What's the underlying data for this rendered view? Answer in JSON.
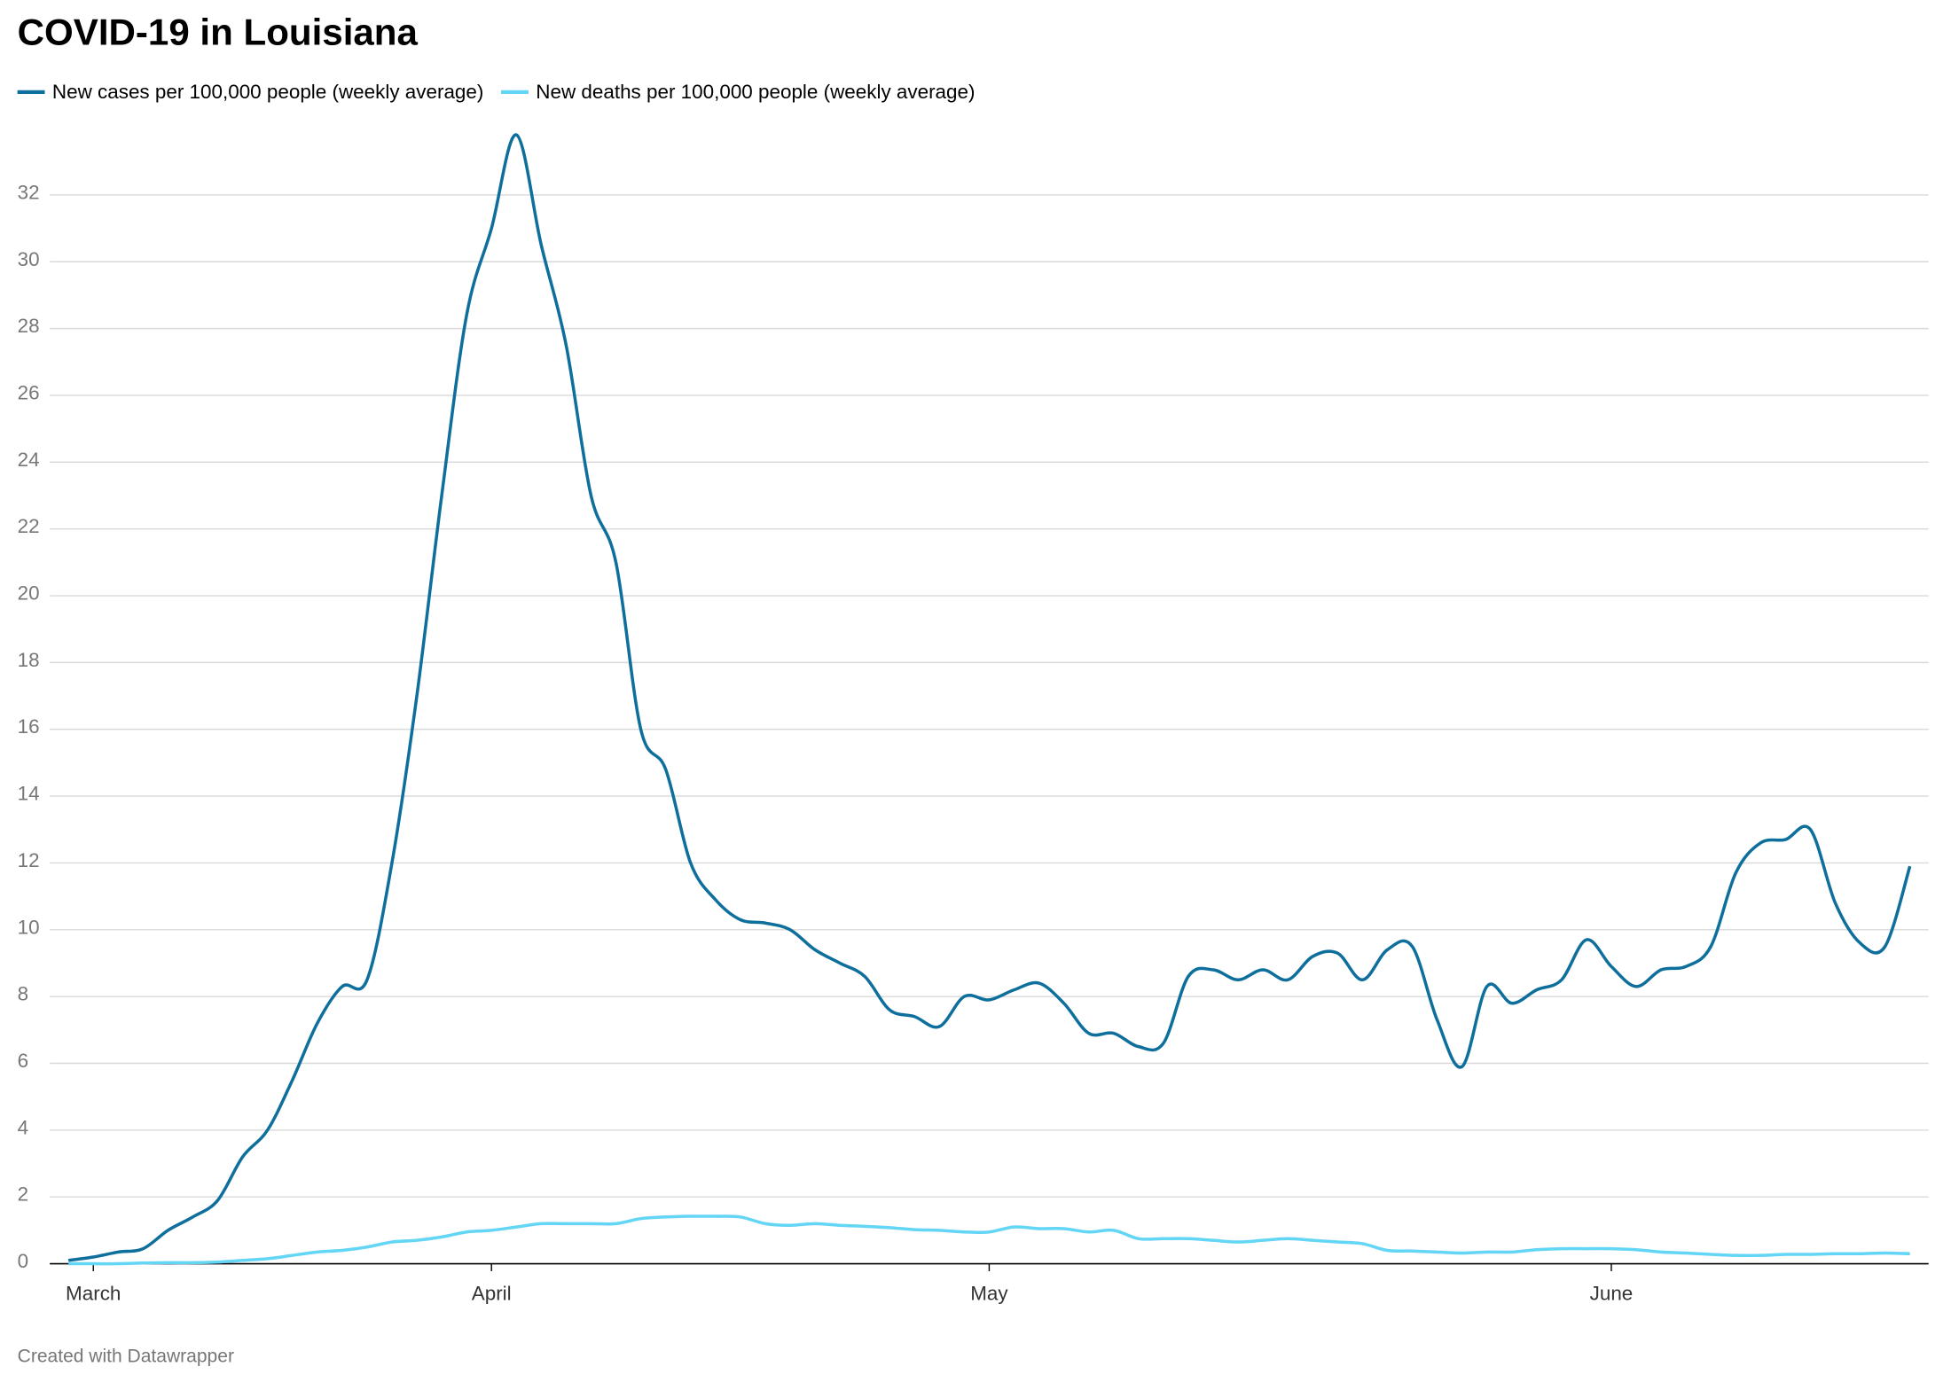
{
  "chart_data": {
    "type": "line",
    "title": "COVID-19 in Louisiana",
    "footer": "Created with Datawrapper",
    "categories": [
      null,
      "March",
      null,
      null,
      null,
      null,
      null,
      null,
      null,
      null,
      null,
      null,
      null,
      null,
      null,
      null,
      null,
      "April",
      null,
      null,
      null,
      null,
      null,
      null,
      null,
      null,
      null,
      null,
      null,
      null,
      null,
      null,
      null,
      null,
      null,
      null,
      null,
      "May",
      null,
      null,
      null,
      null,
      null,
      null,
      null,
      null,
      null,
      null,
      null,
      null,
      null,
      null,
      null,
      null,
      null,
      null,
      null,
      null,
      null,
      null,
      null,
      null,
      "June",
      null,
      null,
      null,
      null,
      null,
      null,
      null,
      null,
      null,
      null,
      null,
      null
    ],
    "series": [
      {
        "name": "New cases per 100,000 people (weekly average)",
        "color": "#0e6f9c",
        "values": [
          0.1,
          0.2,
          0.35,
          0.45,
          1.0,
          1.4,
          1.9,
          3.2,
          4.0,
          5.5,
          7.2,
          8.3,
          8.5,
          12.0,
          17.0,
          23.0,
          28.4,
          31.0,
          33.8,
          30.5,
          27.5,
          23.0,
          21.0,
          16.0,
          14.8,
          12.0,
          10.9,
          10.3,
          10.2,
          10.0,
          9.4,
          9.0,
          8.6,
          7.6,
          7.4,
          7.1,
          8.0,
          7.9,
          8.2,
          8.4,
          7.8,
          6.9,
          6.9,
          6.5,
          6.6,
          8.6,
          8.8,
          8.5,
          8.8,
          8.5,
          9.2,
          9.3,
          8.5,
          9.4,
          9.5,
          7.3,
          5.9,
          8.3,
          7.8,
          8.2,
          8.5,
          9.7,
          8.9,
          8.3,
          8.8,
          8.9,
          9.5,
          11.7,
          12.6,
          12.7,
          13.0,
          10.8,
          9.6,
          9.5,
          11.9
        ]
      },
      {
        "name": "New deaths per 100,000 people (weekly average)",
        "color": "#63d5f5",
        "values": [
          0.0,
          0.0,
          0.0,
          0.02,
          0.03,
          0.03,
          0.05,
          0.1,
          0.15,
          0.25,
          0.35,
          0.4,
          0.5,
          0.65,
          0.7,
          0.8,
          0.95,
          1.0,
          1.1,
          1.2,
          1.2,
          1.2,
          1.2,
          1.35,
          1.4,
          1.42,
          1.42,
          1.4,
          1.2,
          1.15,
          1.2,
          1.15,
          1.12,
          1.08,
          1.02,
          1.0,
          0.95,
          0.95,
          1.1,
          1.05,
          1.05,
          0.95,
          1.0,
          0.75,
          0.75,
          0.75,
          0.7,
          0.65,
          0.7,
          0.75,
          0.7,
          0.65,
          0.6,
          0.4,
          0.38,
          0.35,
          0.32,
          0.35,
          0.35,
          0.42,
          0.45,
          0.45,
          0.45,
          0.42,
          0.35,
          0.32,
          0.28,
          0.25,
          0.25,
          0.28,
          0.28,
          0.3,
          0.3,
          0.32,
          0.3
        ]
      }
    ],
    "ylim": [
      0,
      34
    ],
    "yticks": [
      0,
      2,
      4,
      6,
      8,
      10,
      12,
      14,
      16,
      18,
      20,
      22,
      24,
      26,
      28,
      30,
      32
    ],
    "grid": true
  }
}
